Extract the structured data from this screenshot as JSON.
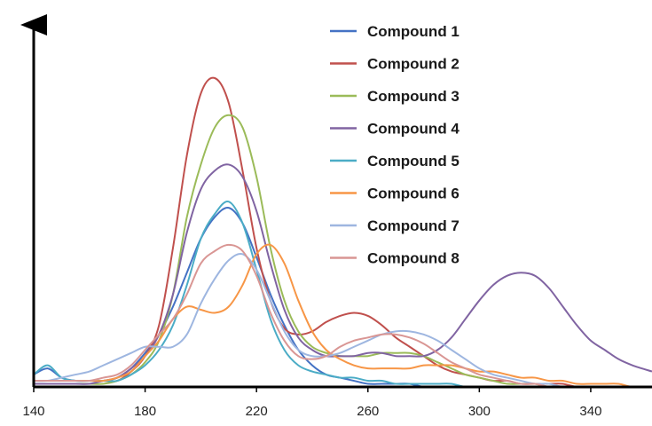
{
  "chart_data": {
    "type": "line",
    "title": "",
    "xlabel": "",
    "ylabel": "",
    "xlim": [
      140,
      362
    ],
    "ylim": [
      0,
      1.0
    ],
    "x_ticks": [
      140,
      180,
      220,
      260,
      300,
      340
    ],
    "x_tick_labels": [
      "140",
      "180",
      "220",
      "260",
      "300",
      "340"
    ],
    "y_ticks_shown": false,
    "grid": false,
    "legend_position": "top-right",
    "x": [
      140,
      145,
      150,
      155,
      160,
      165,
      170,
      175,
      180,
      185,
      190,
      195,
      200,
      205,
      210,
      215,
      220,
      225,
      230,
      235,
      240,
      245,
      250,
      255,
      260,
      265,
      270,
      275,
      280,
      285,
      290,
      295,
      300,
      305,
      310,
      315,
      320,
      325,
      330,
      335,
      340,
      345,
      350,
      355,
      362
    ],
    "series": [
      {
        "name": "Compound 1",
        "color": "#4472c4",
        "values": [
          0.04,
          0.06,
          0.03,
          0.02,
          0.02,
          0.02,
          0.03,
          0.06,
          0.11,
          0.17,
          0.26,
          0.37,
          0.48,
          0.55,
          0.58,
          0.53,
          0.42,
          0.3,
          0.2,
          0.12,
          0.07,
          0.04,
          0.03,
          0.02,
          0.01,
          0.01,
          0.01,
          0.01,
          0.0,
          0.0,
          0.0,
          0.0,
          0.0,
          0.0,
          0.0,
          0.0,
          0.0,
          0.0,
          0.0,
          0.0,
          0.0,
          0.0,
          0.0,
          0.0,
          0.0
        ]
      },
      {
        "name": "Compound 2",
        "color": "#c0504d",
        "values": [
          0.02,
          0.02,
          0.02,
          0.02,
          0.02,
          0.02,
          0.02,
          0.05,
          0.1,
          0.2,
          0.45,
          0.75,
          0.95,
          1.0,
          0.92,
          0.7,
          0.45,
          0.28,
          0.19,
          0.17,
          0.18,
          0.21,
          0.23,
          0.24,
          0.23,
          0.2,
          0.16,
          0.13,
          0.1,
          0.07,
          0.05,
          0.04,
          0.03,
          0.02,
          0.02,
          0.01,
          0.01,
          0.01,
          0.01,
          0.0,
          0.0,
          0.0,
          0.0,
          0.0,
          0.0
        ]
      },
      {
        "name": "Compound 3",
        "color": "#9bbb59",
        "values": [
          0.01,
          0.01,
          0.01,
          0.01,
          0.01,
          0.01,
          0.02,
          0.04,
          0.08,
          0.15,
          0.3,
          0.55,
          0.72,
          0.84,
          0.88,
          0.84,
          0.68,
          0.45,
          0.28,
          0.18,
          0.13,
          0.11,
          0.1,
          0.1,
          0.1,
          0.11,
          0.11,
          0.11,
          0.1,
          0.08,
          0.06,
          0.04,
          0.03,
          0.02,
          0.01,
          0.01,
          0.01,
          0.0,
          0.0,
          0.0,
          0.0,
          0.0,
          0.0,
          0.0,
          0.0
        ]
      },
      {
        "name": "Compound 4",
        "color": "#8064a2",
        "values": [
          0.01,
          0.01,
          0.01,
          0.01,
          0.01,
          0.02,
          0.03,
          0.06,
          0.1,
          0.17,
          0.3,
          0.5,
          0.64,
          0.7,
          0.72,
          0.68,
          0.57,
          0.4,
          0.25,
          0.16,
          0.12,
          0.1,
          0.1,
          0.1,
          0.11,
          0.11,
          0.1,
          0.1,
          0.1,
          0.12,
          0.16,
          0.22,
          0.28,
          0.33,
          0.36,
          0.37,
          0.36,
          0.32,
          0.26,
          0.2,
          0.15,
          0.12,
          0.09,
          0.07,
          0.05
        ]
      },
      {
        "name": "Compound 5",
        "color": "#4bacc6",
        "values": [
          0.04,
          0.07,
          0.03,
          0.02,
          0.02,
          0.02,
          0.02,
          0.04,
          0.07,
          0.12,
          0.2,
          0.33,
          0.48,
          0.56,
          0.6,
          0.53,
          0.38,
          0.22,
          0.12,
          0.07,
          0.05,
          0.04,
          0.03,
          0.03,
          0.02,
          0.02,
          0.01,
          0.01,
          0.01,
          0.01,
          0.01,
          0.0,
          0.0,
          0.0,
          0.0,
          0.0,
          0.0,
          0.0,
          0.0,
          0.0,
          0.0,
          0.0,
          0.0,
          0.0,
          0.0
        ]
      },
      {
        "name": "Compound 6",
        "color": "#f79646",
        "values": [
          0.02,
          0.02,
          0.02,
          0.02,
          0.02,
          0.02,
          0.03,
          0.05,
          0.1,
          0.15,
          0.22,
          0.26,
          0.25,
          0.24,
          0.26,
          0.33,
          0.43,
          0.46,
          0.4,
          0.28,
          0.18,
          0.12,
          0.09,
          0.07,
          0.06,
          0.06,
          0.06,
          0.06,
          0.07,
          0.07,
          0.07,
          0.06,
          0.05,
          0.05,
          0.04,
          0.03,
          0.03,
          0.02,
          0.02,
          0.01,
          0.01,
          0.01,
          0.01,
          0.0,
          0.0
        ]
      },
      {
        "name": "Compound 7",
        "color": "#9eb6e0",
        "values": [
          0.02,
          0.02,
          0.03,
          0.04,
          0.05,
          0.07,
          0.09,
          0.11,
          0.13,
          0.13,
          0.13,
          0.17,
          0.27,
          0.35,
          0.41,
          0.43,
          0.38,
          0.28,
          0.18,
          0.12,
          0.1,
          0.1,
          0.11,
          0.13,
          0.15,
          0.17,
          0.18,
          0.18,
          0.17,
          0.15,
          0.12,
          0.09,
          0.06,
          0.04,
          0.03,
          0.02,
          0.01,
          0.01,
          0.0,
          0.0,
          0.0,
          0.0,
          0.0,
          0.0,
          0.0
        ]
      },
      {
        "name": "Compound 8",
        "color": "#d99694",
        "values": [
          0.02,
          0.02,
          0.02,
          0.02,
          0.02,
          0.03,
          0.04,
          0.07,
          0.12,
          0.17,
          0.22,
          0.3,
          0.4,
          0.44,
          0.46,
          0.44,
          0.36,
          0.24,
          0.15,
          0.1,
          0.09,
          0.1,
          0.13,
          0.15,
          0.16,
          0.17,
          0.17,
          0.16,
          0.14,
          0.11,
          0.08,
          0.06,
          0.04,
          0.03,
          0.02,
          0.01,
          0.01,
          0.0,
          0.0,
          0.0,
          0.0,
          0.0,
          0.0,
          0.0,
          0.0
        ]
      }
    ]
  }
}
